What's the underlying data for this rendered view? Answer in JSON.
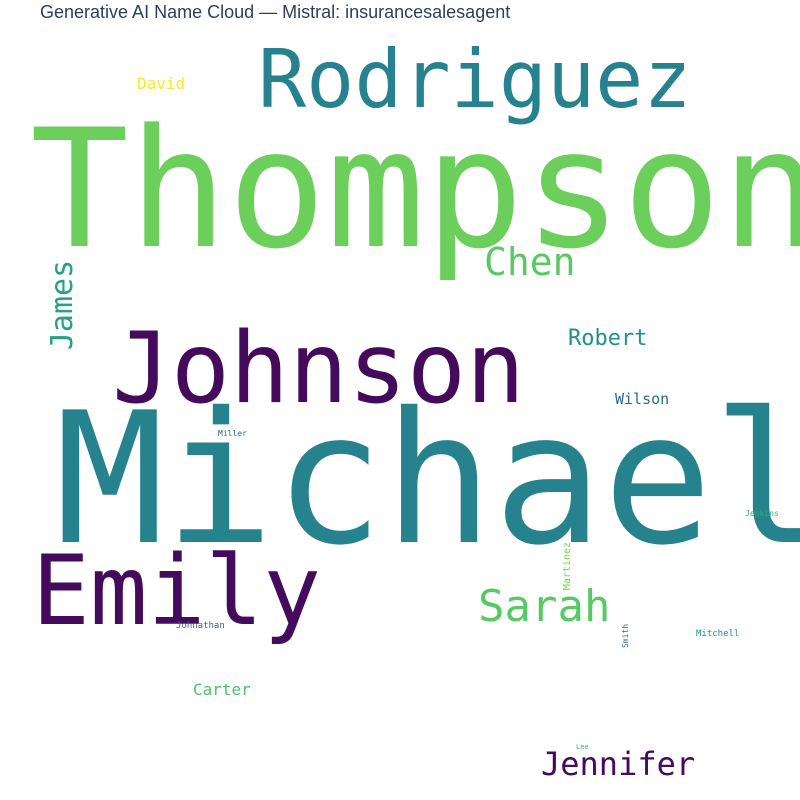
{
  "title": "Generative AI Name Cloud — Mistral: insurancesalesagent",
  "words": {
    "thompson": {
      "text": "Thompson",
      "color": "#6ccf5c"
    },
    "michael": {
      "text": "Michael",
      "color": "#26838e"
    },
    "rodriguez": {
      "text": "Rodriguez",
      "color": "#26828e"
    },
    "johnson": {
      "text": "Johnson",
      "color": "#440a5c"
    },
    "emily": {
      "text": "Emily",
      "color": "#440a5c"
    },
    "sarah": {
      "text": "Sarah",
      "color": "#5ac864"
    },
    "jennifer": {
      "text": "Jennifer",
      "color": "#440a5c"
    },
    "chen": {
      "text": "Chen",
      "color": "#5ac864"
    },
    "james": {
      "text": "James",
      "color": "#25a184"
    },
    "robert": {
      "text": "Robert",
      "color": "#21918c"
    },
    "david": {
      "text": "David",
      "color": "#fde725"
    },
    "wilson": {
      "text": "Wilson",
      "color": "#31678e"
    },
    "carter": {
      "text": "Carter",
      "color": "#4cc26c"
    },
    "martinez": {
      "text": "Martinez",
      "color": "#7ad151"
    },
    "miller": {
      "text": "Miller",
      "color": "#31678e"
    },
    "johnathan": {
      "text": "Johnathan",
      "color": "#31688e"
    },
    "smith": {
      "text": "Smith",
      "color": "#31688e"
    },
    "mitchell": {
      "text": "Mitchell",
      "color": "#23898e"
    },
    "jenkins": {
      "text": "Jenkins",
      "color": "#2ab07f"
    },
    "lee": {
      "text": "Lee",
      "color": "#35b779"
    }
  }
}
